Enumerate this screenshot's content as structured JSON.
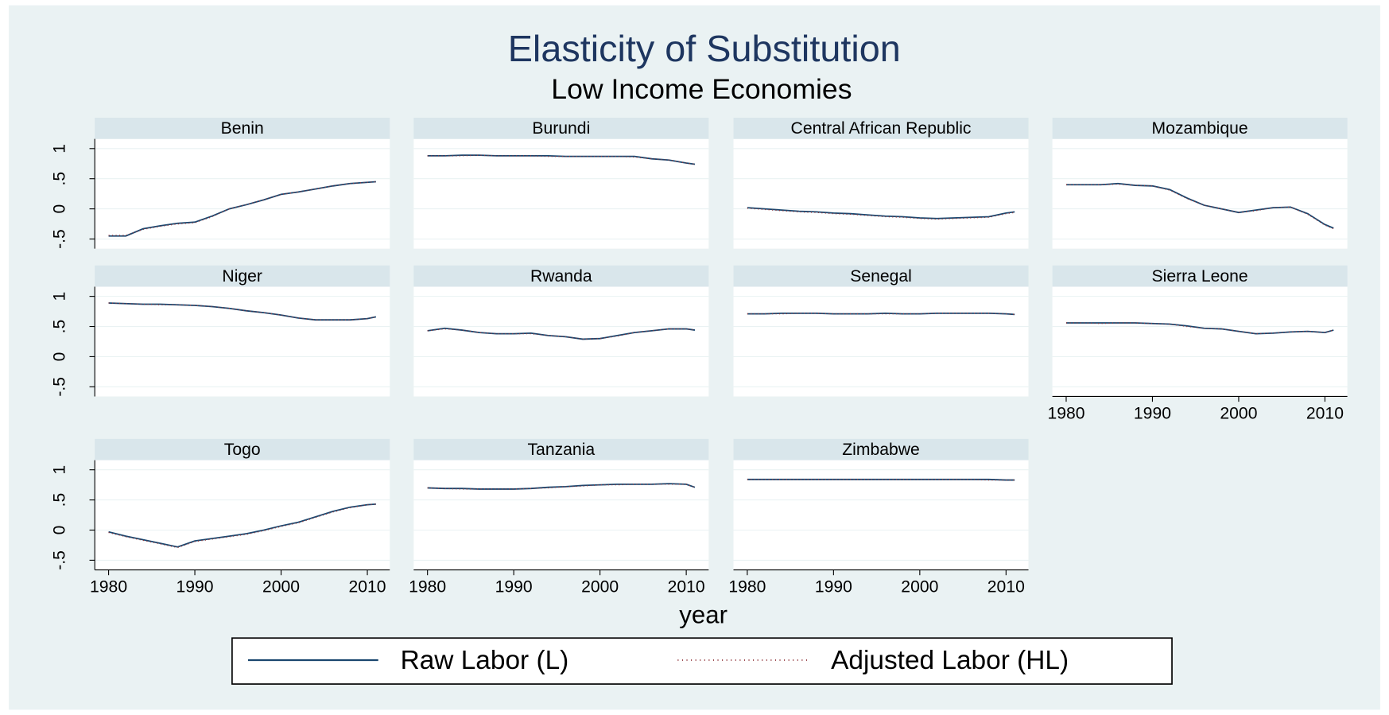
{
  "chart_data": {
    "type": "line",
    "title": "Elasticity of Substitution",
    "subtitle": "Low Income Economies",
    "x_label": "year",
    "x": [
      1980,
      1982,
      1984,
      1986,
      1988,
      1990,
      1992,
      1994,
      1996,
      1998,
      2000,
      2002,
      2004,
      2006,
      2008,
      2010,
      2011
    ],
    "xlim": [
      1978.4,
      2012.6
    ],
    "xticks": [
      1980,
      1990,
      2000,
      2010
    ],
    "ylim": [
      -0.66,
      1.16
    ],
    "yticks": [
      {
        "value": -0.5,
        "label": "-.5"
      },
      0,
      {
        "value": 0.5,
        "label": ".5"
      },
      1
    ],
    "grid": true,
    "panels": [
      {
        "title": "Benin",
        "series": [
          {
            "name": "Raw Labor (L)",
            "color": "#1a476f",
            "values": [
              -0.45,
              -0.45,
              -0.33,
              -0.28,
              -0.24,
              -0.22,
              -0.12,
              0.0,
              0.07,
              0.15,
              0.24,
              0.28,
              0.33,
              0.38,
              0.42,
              0.44,
              0.45
            ]
          },
          {
            "name": "Adjusted Labor (HL)",
            "color": "#90353b",
            "values": [
              -0.44,
              -0.44,
              -0.34,
              -0.29,
              -0.25,
              -0.23,
              -0.13,
              0.0,
              0.07,
              0.15,
              0.24,
              0.28,
              0.33,
              0.38,
              0.42,
              0.44,
              0.45
            ]
          }
        ]
      },
      {
        "title": "Burundi",
        "series": [
          {
            "name": "Raw Labor (L)",
            "color": "#1a476f",
            "values": [
              0.88,
              0.88,
              0.89,
              0.89,
              0.88,
              0.88,
              0.88,
              0.88,
              0.87,
              0.87,
              0.87,
              0.87,
              0.87,
              0.83,
              0.81,
              0.76,
              0.74
            ]
          },
          {
            "name": "Adjusted Labor (HL)",
            "color": "#90353b",
            "values": [
              0.88,
              0.88,
              0.88,
              0.89,
              0.88,
              0.88,
              0.88,
              0.87,
              0.87,
              0.87,
              0.87,
              0.87,
              0.86,
              0.83,
              0.81,
              0.76,
              0.74
            ]
          }
        ]
      },
      {
        "title": "Central African Republic",
        "series": [
          {
            "name": "Raw Labor (L)",
            "color": "#1a476f",
            "values": [
              0.02,
              0.0,
              -0.02,
              -0.04,
              -0.05,
              -0.07,
              -0.08,
              -0.1,
              -0.12,
              -0.13,
              -0.15,
              -0.16,
              -0.15,
              -0.14,
              -0.13,
              -0.07,
              -0.05
            ]
          },
          {
            "name": "Adjusted Labor (HL)",
            "color": "#90353b",
            "values": [
              0.01,
              -0.01,
              -0.03,
              -0.05,
              -0.06,
              -0.08,
              -0.09,
              -0.11,
              -0.13,
              -0.14,
              -0.16,
              -0.17,
              -0.16,
              -0.15,
              -0.14,
              -0.08,
              -0.06
            ]
          }
        ]
      },
      {
        "title": "Mozambique",
        "series": [
          {
            "name": "Raw Labor (L)",
            "color": "#1a476f",
            "values": [
              0.4,
              0.4,
              0.4,
              0.42,
              0.39,
              0.38,
              0.32,
              0.18,
              0.06,
              0.0,
              -0.06,
              -0.02,
              0.02,
              0.03,
              -0.08,
              -0.26,
              -0.32
            ]
          },
          {
            "name": "Adjusted Labor (HL)",
            "color": "#90353b",
            "values": [
              0.4,
              0.4,
              0.4,
              0.41,
              0.39,
              0.38,
              0.31,
              0.17,
              0.06,
              0.0,
              -0.06,
              -0.03,
              0.02,
              0.03,
              -0.09,
              -0.27,
              -0.33
            ]
          }
        ]
      },
      {
        "title": "Niger",
        "series": [
          {
            "name": "Raw Labor (L)",
            "color": "#1a476f",
            "values": [
              0.89,
              0.88,
              0.87,
              0.87,
              0.86,
              0.85,
              0.83,
              0.8,
              0.76,
              0.73,
              0.69,
              0.64,
              0.61,
              0.61,
              0.61,
              0.63,
              0.66
            ]
          },
          {
            "name": "Adjusted Labor (HL)",
            "color": "#90353b",
            "values": [
              0.89,
              0.88,
              0.87,
              0.86,
              0.86,
              0.85,
              0.83,
              0.8,
              0.76,
              0.73,
              0.69,
              0.64,
              0.61,
              0.61,
              0.61,
              0.63,
              0.66
            ]
          }
        ]
      },
      {
        "title": "Rwanda",
        "series": [
          {
            "name": "Raw Labor (L)",
            "color": "#1a476f",
            "values": [
              0.43,
              0.47,
              0.44,
              0.4,
              0.38,
              0.38,
              0.39,
              0.35,
              0.33,
              0.29,
              0.3,
              0.35,
              0.4,
              0.43,
              0.46,
              0.46,
              0.44
            ]
          },
          {
            "name": "Adjusted Labor (HL)",
            "color": "#90353b",
            "values": [
              0.43,
              0.46,
              0.44,
              0.4,
              0.38,
              0.38,
              0.38,
              0.35,
              0.33,
              0.29,
              0.3,
              0.34,
              0.4,
              0.43,
              0.46,
              0.46,
              0.44
            ]
          }
        ]
      },
      {
        "title": "Senegal",
        "series": [
          {
            "name": "Raw Labor (L)",
            "color": "#1a476f",
            "values": [
              0.71,
              0.71,
              0.72,
              0.72,
              0.72,
              0.71,
              0.71,
              0.71,
              0.72,
              0.71,
              0.71,
              0.72,
              0.72,
              0.72,
              0.72,
              0.71,
              0.7
            ]
          },
          {
            "name": "Adjusted Labor (HL)",
            "color": "#90353b",
            "values": [
              0.71,
              0.71,
              0.71,
              0.72,
              0.72,
              0.71,
              0.71,
              0.71,
              0.71,
              0.71,
              0.71,
              0.72,
              0.72,
              0.72,
              0.72,
              0.71,
              0.7
            ]
          }
        ]
      },
      {
        "title": "Sierra Leone",
        "series": [
          {
            "name": "Raw Labor (L)",
            "color": "#1a476f",
            "values": [
              0.56,
              0.56,
              0.56,
              0.56,
              0.56,
              0.55,
              0.54,
              0.51,
              0.47,
              0.46,
              0.42,
              0.38,
              0.39,
              0.41,
              0.42,
              0.4,
              0.44
            ]
          },
          {
            "name": "Adjusted Labor (HL)",
            "color": "#90353b",
            "values": [
              0.56,
              0.56,
              0.55,
              0.56,
              0.56,
              0.55,
              0.54,
              0.5,
              0.47,
              0.46,
              0.42,
              0.38,
              0.39,
              0.41,
              0.42,
              0.4,
              0.44
            ]
          }
        ]
      },
      {
        "title": "Togo",
        "series": [
          {
            "name": "Raw Labor (L)",
            "color": "#1a476f",
            "values": [
              -0.03,
              -0.1,
              -0.16,
              -0.22,
              -0.28,
              -0.18,
              -0.14,
              -0.1,
              -0.06,
              0.0,
              0.07,
              0.13,
              0.22,
              0.31,
              0.38,
              0.42,
              0.43
            ]
          },
          {
            "name": "Adjusted Labor (HL)",
            "color": "#90353b",
            "values": [
              -0.04,
              -0.11,
              -0.17,
              -0.23,
              -0.29,
              -0.19,
              -0.15,
              -0.11,
              -0.07,
              -0.01,
              0.06,
              0.12,
              0.21,
              0.3,
              0.37,
              0.42,
              0.43
            ]
          }
        ]
      },
      {
        "title": "Tanzania",
        "series": [
          {
            "name": "Raw Labor (L)",
            "color": "#1a476f",
            "values": [
              0.7,
              0.69,
              0.69,
              0.68,
              0.68,
              0.68,
              0.69,
              0.71,
              0.72,
              0.74,
              0.75,
              0.76,
              0.76,
              0.76,
              0.77,
              0.76,
              0.71
            ]
          },
          {
            "name": "Adjusted Labor (HL)",
            "color": "#90353b",
            "values": [
              0.7,
              0.69,
              0.68,
              0.68,
              0.68,
              0.68,
              0.69,
              0.7,
              0.72,
              0.73,
              0.75,
              0.75,
              0.76,
              0.76,
              0.76,
              0.76,
              0.71
            ]
          }
        ]
      },
      {
        "title": "Zimbabwe",
        "series": [
          {
            "name": "Raw Labor (L)",
            "color": "#1a476f",
            "values": [
              0.84,
              0.84,
              0.84,
              0.84,
              0.84,
              0.84,
              0.84,
              0.84,
              0.84,
              0.84,
              0.84,
              0.84,
              0.84,
              0.84,
              0.84,
              0.83,
              0.83
            ]
          },
          {
            "name": "Adjusted Labor (HL)",
            "color": "#90353b",
            "values": [
              0.84,
              0.84,
              0.84,
              0.84,
              0.84,
              0.84,
              0.84,
              0.84,
              0.84,
              0.84,
              0.84,
              0.84,
              0.84,
              0.84,
              0.83,
              0.83,
              0.83
            ]
          }
        ]
      }
    ]
  }
}
